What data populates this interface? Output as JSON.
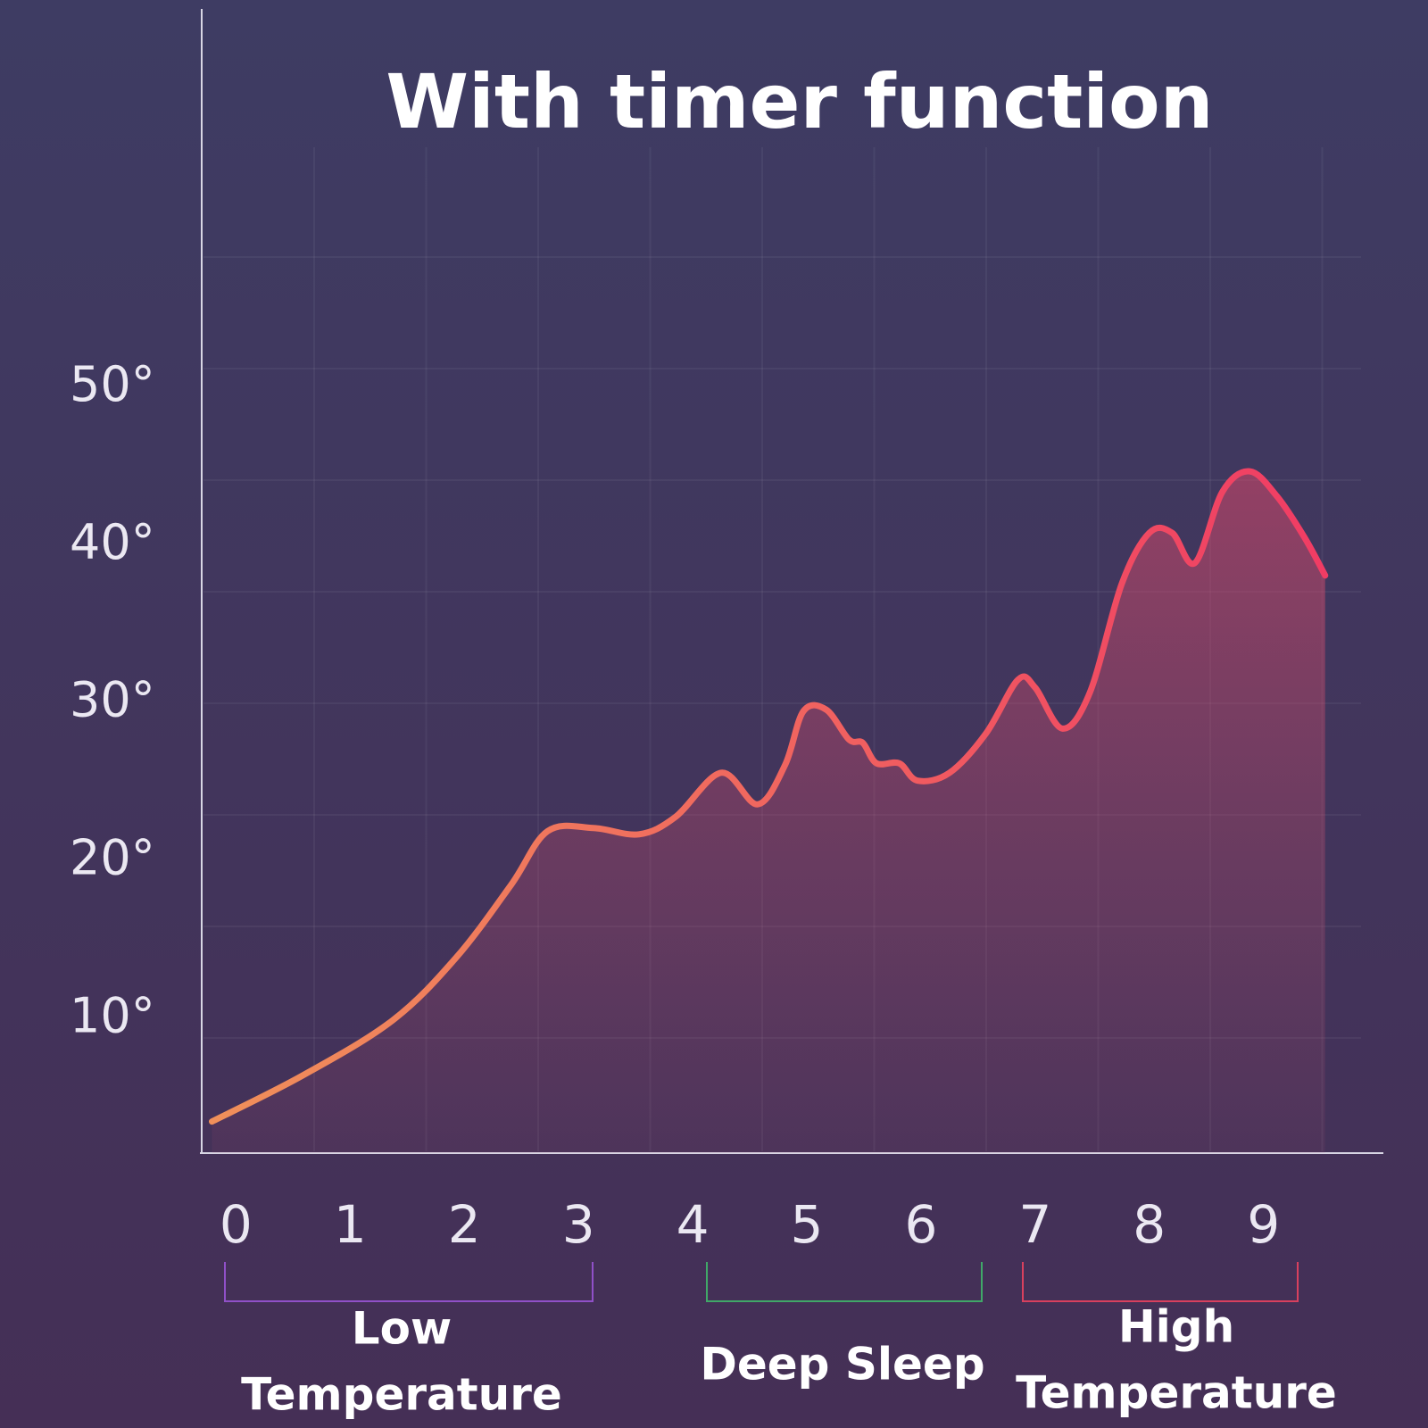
{
  "chart_data": {
    "type": "line",
    "title": "With timer function",
    "x": [
      -0.21,
      0.58,
      1.37,
      1.93,
      2.41,
      2.73,
      3.13,
      3.53,
      3.85,
      4.25,
      4.57,
      4.81,
      4.97,
      5.17,
      5.37,
      5.49,
      5.61,
      5.81,
      5.97,
      6.25,
      6.57,
      6.85,
      7.0,
      7.24,
      7.48,
      7.76,
      8.0,
      8.2,
      8.4,
      8.64,
      8.88,
      9.12,
      9.36,
      9.54
    ],
    "values": [
      3.5,
      6.4,
      9.9,
      13.9,
      18.5,
      21.9,
      22.1,
      21.7,
      22.8,
      25.6,
      23.6,
      26.1,
      29.5,
      29.6,
      27.7,
      27.5,
      26.2,
      26.2,
      25.1,
      25.6,
      28.1,
      31.5,
      31.0,
      28.4,
      30.7,
      37.6,
      40.8,
      40.8,
      38.9,
      43.4,
      44.7,
      43.1,
      40.5,
      38.1
    ],
    "color_start": "#f0905a",
    "color_end": "#f03c64",
    "xlim": [
      -0.3,
      10.05
    ],
    "xticks": [
      0,
      1,
      2,
      3,
      4,
      5,
      6,
      7,
      8,
      9
    ],
    "ylim": [
      1.5,
      74
    ],
    "yticks": [
      {
        "value": 10,
        "label": "10°"
      },
      {
        "value": 20,
        "label": "20°"
      },
      {
        "value": 30,
        "label": "30°"
      },
      {
        "value": 40,
        "label": "40°"
      },
      {
        "value": 50,
        "label": "50°"
      }
    ],
    "groups": [
      {
        "label": [
          "Low",
          "Temperature"
        ]
      },
      {
        "label": [
          "Deep Sleep"
        ]
      },
      {
        "label": [
          "High",
          "Temperature"
        ]
      }
    ]
  }
}
